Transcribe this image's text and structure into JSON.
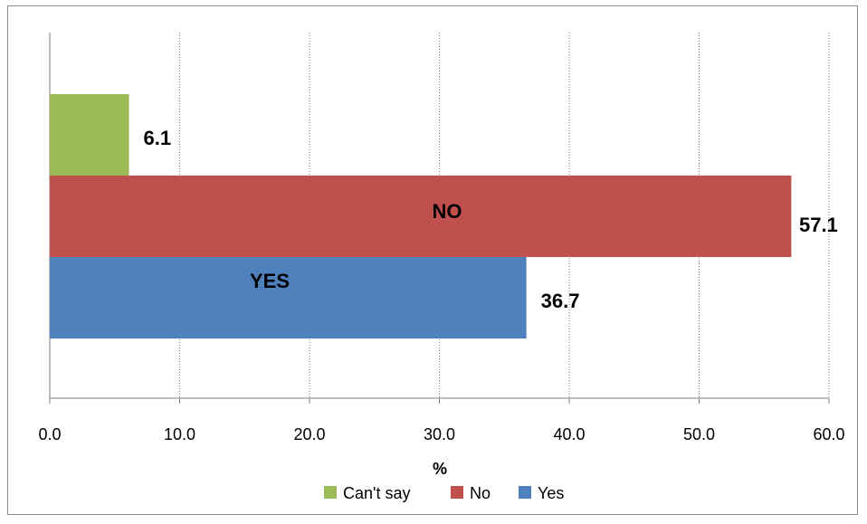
{
  "chart_data": {
    "type": "bar",
    "orientation": "horizontal",
    "xlabel": "%",
    "xlim": [
      0,
      60
    ],
    "xticks": [
      "0.0",
      "10.0",
      "20.0",
      "30.0",
      "40.0",
      "50.0",
      "60.0"
    ],
    "grid": "vertical, dotted",
    "legend_position": "bottom",
    "series": [
      {
        "name": "Can't say",
        "value": 6.1,
        "value_label": "6.1",
        "bar_label": "",
        "color": "#9bbb59"
      },
      {
        "name": "No",
        "value": 57.1,
        "value_label": "57.1",
        "bar_label": "NO",
        "color": "#c0504d"
      },
      {
        "name": "Yes",
        "value": 36.7,
        "value_label": "36.7",
        "bar_label": "YES",
        "color": "#4f81bd"
      }
    ]
  }
}
